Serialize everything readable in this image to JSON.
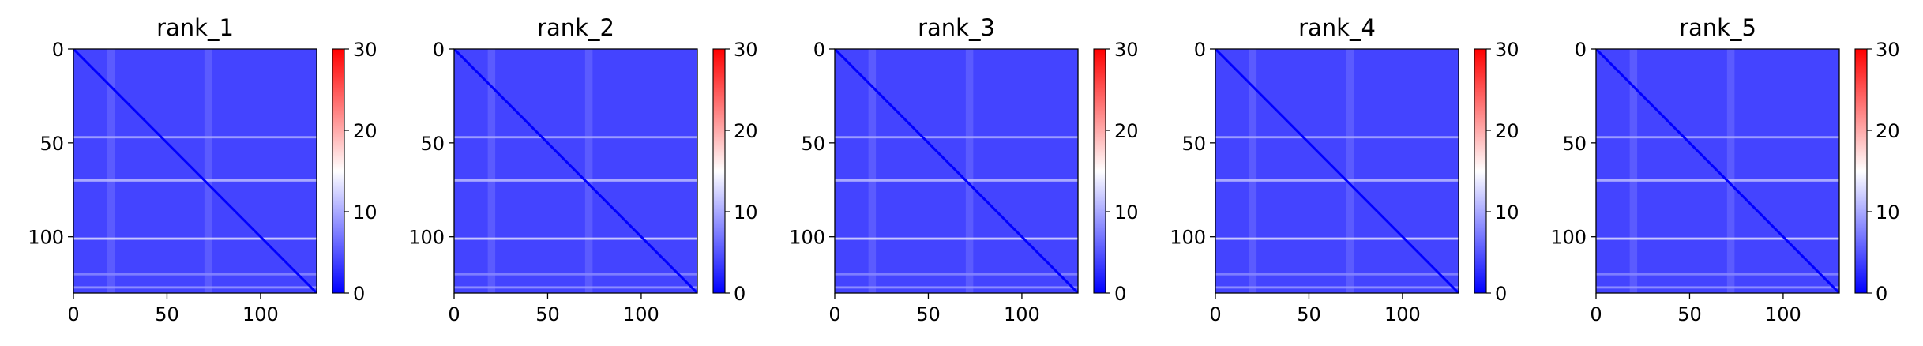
{
  "figure": {
    "colormap": "bwr",
    "colormap_colors": [
      "#0000ff",
      "#ffffff",
      "#ff0000"
    ]
  },
  "chart_data": [
    {
      "type": "heatmap",
      "title": "rank_1",
      "xlim": [
        0,
        130
      ],
      "ylim": [
        130,
        0
      ],
      "xticks": [
        "0",
        "50",
        "100"
      ],
      "yticks": [
        "0",
        "50",
        "100"
      ],
      "colorbar": {
        "range": [
          0,
          30
        ],
        "ticks": [
          "0",
          "10",
          "20",
          "30"
        ]
      },
      "diagonal_value": 0,
      "background_value": 4,
      "bright_rows": [
        {
          "row": 47,
          "value": 10
        },
        {
          "row": 70,
          "value": 11
        },
        {
          "row": 101,
          "value": 13
        },
        {
          "row": 120,
          "value": 8
        },
        {
          "row": 127,
          "value": 9
        }
      ],
      "bright_cols": [
        {
          "col": 20,
          "value": 7
        },
        {
          "col": 72,
          "value": 7
        }
      ]
    },
    {
      "type": "heatmap",
      "title": "rank_2",
      "xlim": [
        0,
        130
      ],
      "ylim": [
        130,
        0
      ],
      "xticks": [
        "0",
        "50",
        "100"
      ],
      "yticks": [
        "0",
        "50",
        "100"
      ],
      "colorbar": {
        "range": [
          0,
          30
        ],
        "ticks": [
          "0",
          "10",
          "20",
          "30"
        ]
      },
      "diagonal_value": 0,
      "background_value": 4,
      "bright_rows": [
        {
          "row": 47,
          "value": 10
        },
        {
          "row": 70,
          "value": 11
        },
        {
          "row": 101,
          "value": 13
        },
        {
          "row": 120,
          "value": 8
        },
        {
          "row": 127,
          "value": 9
        }
      ],
      "bright_cols": [
        {
          "col": 20,
          "value": 7
        },
        {
          "col": 72,
          "value": 7
        }
      ]
    },
    {
      "type": "heatmap",
      "title": "rank_3",
      "xlim": [
        0,
        130
      ],
      "ylim": [
        130,
        0
      ],
      "xticks": [
        "0",
        "50",
        "100"
      ],
      "yticks": [
        "0",
        "50",
        "100"
      ],
      "colorbar": {
        "range": [
          0,
          30
        ],
        "ticks": [
          "0",
          "10",
          "20",
          "30"
        ]
      },
      "diagonal_value": 0,
      "background_value": 4,
      "bright_rows": [
        {
          "row": 47,
          "value": 10
        },
        {
          "row": 70,
          "value": 11
        },
        {
          "row": 101,
          "value": 13
        },
        {
          "row": 120,
          "value": 8
        },
        {
          "row": 127,
          "value": 9
        }
      ],
      "bright_cols": [
        {
          "col": 20,
          "value": 7
        },
        {
          "col": 72,
          "value": 7
        }
      ]
    },
    {
      "type": "heatmap",
      "title": "rank_4",
      "xlim": [
        0,
        130
      ],
      "ylim": [
        130,
        0
      ],
      "xticks": [
        "0",
        "50",
        "100"
      ],
      "yticks": [
        "0",
        "50",
        "100"
      ],
      "colorbar": {
        "range": [
          0,
          30
        ],
        "ticks": [
          "0",
          "10",
          "20",
          "30"
        ]
      },
      "diagonal_value": 0,
      "background_value": 4,
      "bright_rows": [
        {
          "row": 47,
          "value": 10
        },
        {
          "row": 70,
          "value": 11
        },
        {
          "row": 101,
          "value": 13
        },
        {
          "row": 120,
          "value": 8
        },
        {
          "row": 127,
          "value": 9
        }
      ],
      "bright_cols": [
        {
          "col": 20,
          "value": 7
        },
        {
          "col": 72,
          "value": 7
        }
      ]
    },
    {
      "type": "heatmap",
      "title": "rank_5",
      "xlim": [
        0,
        130
      ],
      "ylim": [
        130,
        0
      ],
      "xticks": [
        "0",
        "50",
        "100"
      ],
      "yticks": [
        "0",
        "50",
        "100"
      ],
      "colorbar": {
        "range": [
          0,
          30
        ],
        "ticks": [
          "0",
          "10",
          "20",
          "30"
        ]
      },
      "diagonal_value": 0,
      "background_value": 4,
      "bright_rows": [
        {
          "row": 47,
          "value": 10
        },
        {
          "row": 70,
          "value": 11
        },
        {
          "row": 101,
          "value": 13
        },
        {
          "row": 120,
          "value": 8
        },
        {
          "row": 127,
          "value": 9
        }
      ],
      "bright_cols": [
        {
          "col": 20,
          "value": 7
        },
        {
          "col": 72,
          "value": 7
        }
      ]
    }
  ]
}
